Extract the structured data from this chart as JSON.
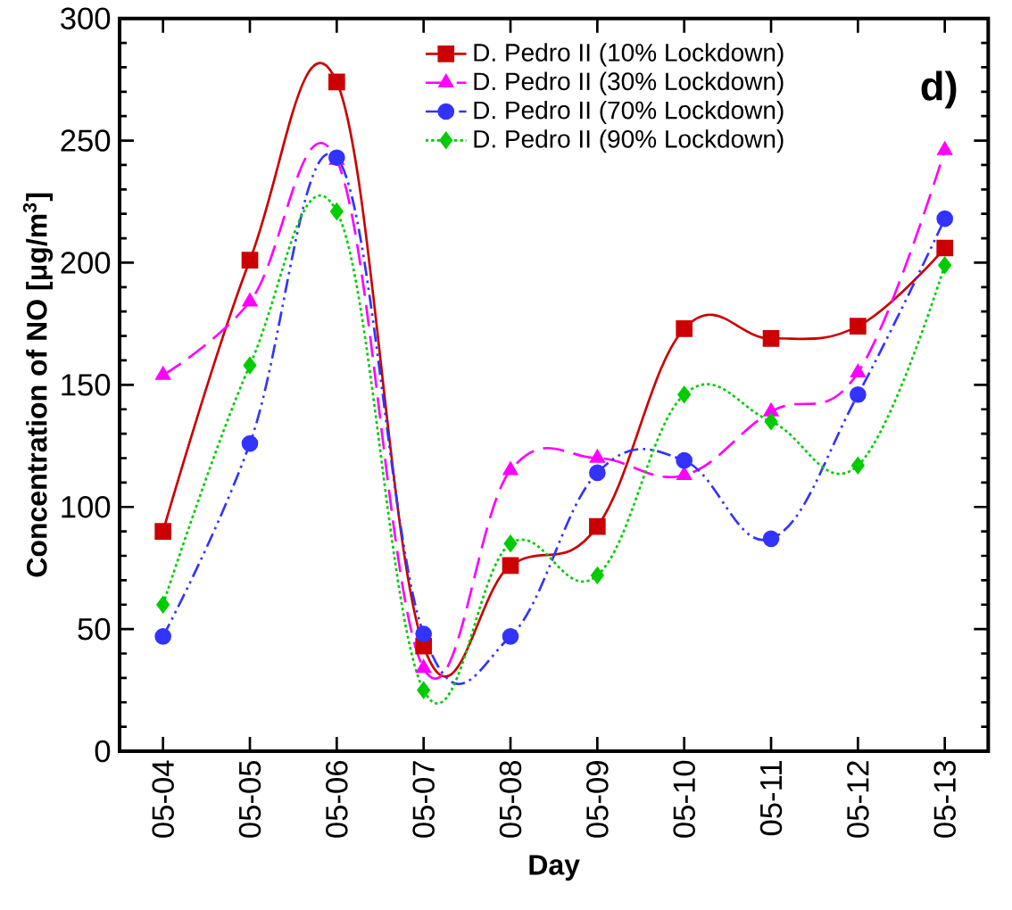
{
  "chart_data": {
    "type": "line",
    "xlabel": "Day",
    "ylabel": "Concentration of NO [μg/m$^{3}$]",
    "categories": [
      "05-04",
      "05-05",
      "05-06",
      "05-07",
      "05-08",
      "05-09",
      "05-10",
      "05-11",
      "05-12",
      "05-13"
    ],
    "ylim": [
      0,
      300
    ],
    "yticks": [
      0,
      50,
      100,
      150,
      200,
      250,
      300
    ],
    "legend": "top right",
    "grid": false,
    "annotations": [
      "d)"
    ],
    "series": [
      {
        "name": "D. Pedro II (10% Lockdown)",
        "color": "#cc0000",
        "marker": "square",
        "line_style": "solid",
        "values": [
          90,
          201,
          274,
          43,
          76,
          92,
          173,
          169,
          174,
          206
        ]
      },
      {
        "name": "D. Pedro II (30% Lockdown)",
        "color": "#ff00ff",
        "marker": "triangle",
        "line_style": "dashed",
        "values": [
          154,
          184,
          242,
          34,
          115,
          120,
          113,
          139,
          155,
          246
        ]
      },
      {
        "name": "D. Pedro II (70% Lockdown)",
        "color": "#3333ff",
        "marker": "circle",
        "line_style": "dashdotted",
        "values": [
          47,
          126,
          243,
          48,
          47,
          114,
          119,
          87,
          146,
          218
        ]
      },
      {
        "name": "D. Pedro II (90% Lockdown)",
        "color": "#00cc00",
        "marker": "diamond",
        "line_style": "dotted",
        "values": [
          60,
          158,
          221,
          25,
          85,
          72,
          146,
          135,
          117,
          199
        ]
      }
    ]
  }
}
